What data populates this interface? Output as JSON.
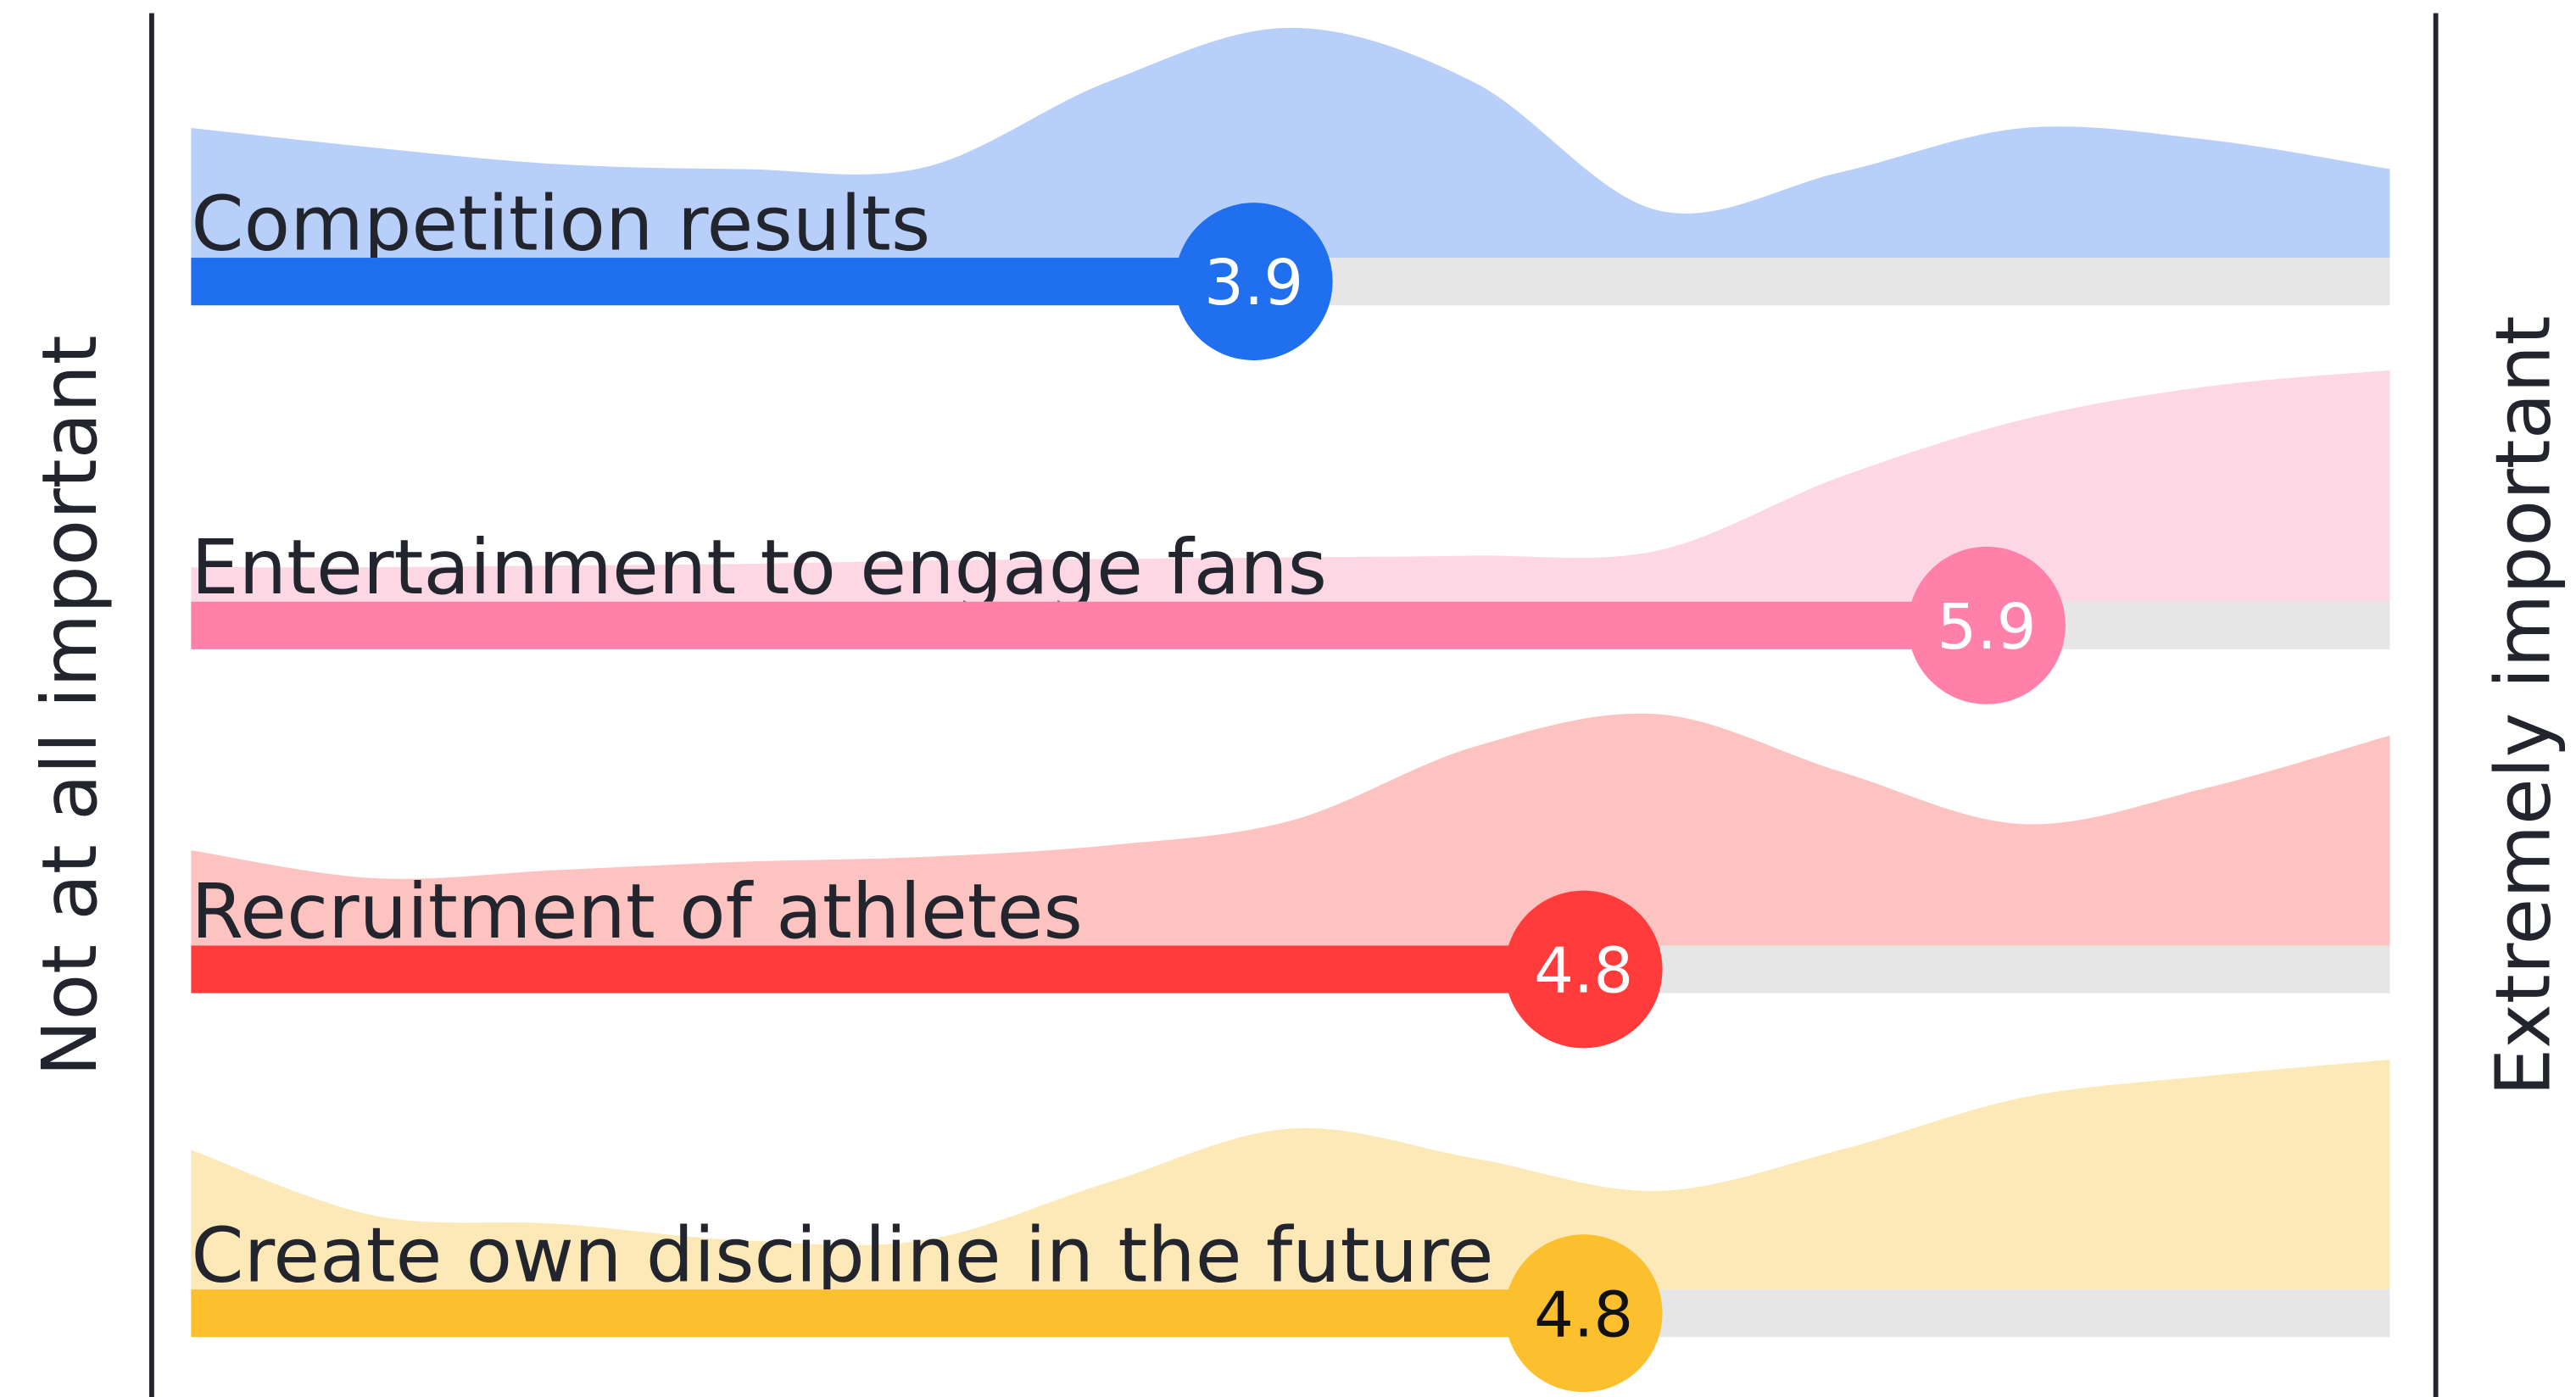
{
  "chart_data": {
    "type": "rating-ridge",
    "left_label": "Not at all important",
    "right_label": "Extremely important",
    "xlim": [
      1,
      7
    ],
    "distribution_x": [
      1,
      1.5,
      2,
      2.5,
      3,
      3.5,
      4,
      4.5,
      5,
      5.5,
      6,
      6.5,
      7
    ],
    "track_color": "#e6e6e6",
    "series": [
      {
        "name": "Competition results",
        "value": 3.9,
        "color": "#1f6fef",
        "area_color": "#b8cffa",
        "label_color": "#ffffff",
        "distribution": [
          79,
          67,
          57,
          54,
          55,
          107,
          140,
          107,
          29,
          52,
          79,
          72,
          54
        ]
      },
      {
        "name": "Entertainment to engage fans",
        "value": 5.9,
        "color": "#ff80a8",
        "area_color": "#fdd8e4",
        "label_color": "#ffffff",
        "distribution": [
          21,
          21,
          22,
          23,
          25,
          26,
          27,
          28,
          31,
          76,
          111,
          131,
          141
        ]
      },
      {
        "name": "Recruitment of athletes",
        "value": 4.8,
        "color": "#ff3b3b",
        "area_color": "#fdc3c0",
        "label_color": "#ffffff",
        "distribution": [
          58,
          41,
          46,
          51,
          54,
          61,
          76,
          121,
          141,
          106,
          74,
          96,
          128
        ]
      },
      {
        "name": "Create own discipline in the future",
        "value": 4.8,
        "color": "#fcc02e",
        "area_color": "#fde9b8",
        "label_color": "#111111",
        "distribution": [
          85,
          45,
          40,
          30,
          30,
          65,
          98,
          80,
          60,
          85,
          117,
          130,
          140
        ]
      }
    ]
  }
}
